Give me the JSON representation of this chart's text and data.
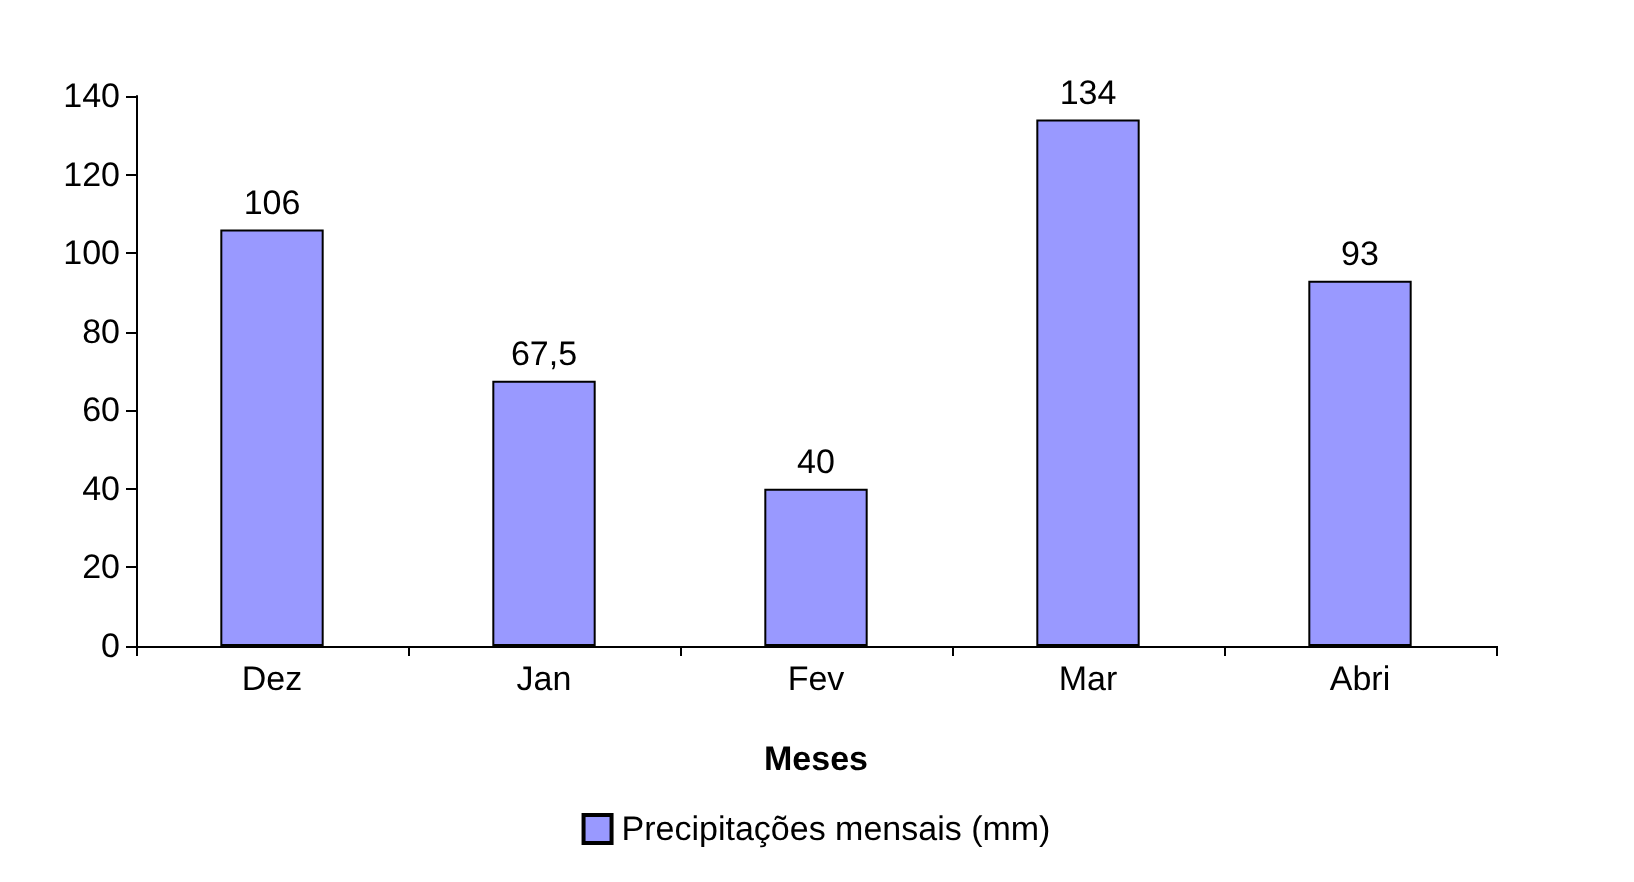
{
  "chart_data": {
    "type": "bar",
    "xlabel": "Meses",
    "categories": [
      "Dez",
      "Jan",
      "Fev",
      "Mar",
      "Abri"
    ],
    "series": [
      {
        "name": "Precipitações mensais (mm)",
        "color": "#9999ff",
        "values": [
          106,
          67.5,
          40,
          134,
          93
        ],
        "value_labels": [
          "106",
          "67,5",
          "40",
          "134",
          "93"
        ]
      }
    ],
    "ylim": [
      0,
      140
    ],
    "yticks": [
      0,
      20,
      40,
      60,
      80,
      100,
      120,
      140
    ],
    "grid": false,
    "legend": "bottom"
  }
}
